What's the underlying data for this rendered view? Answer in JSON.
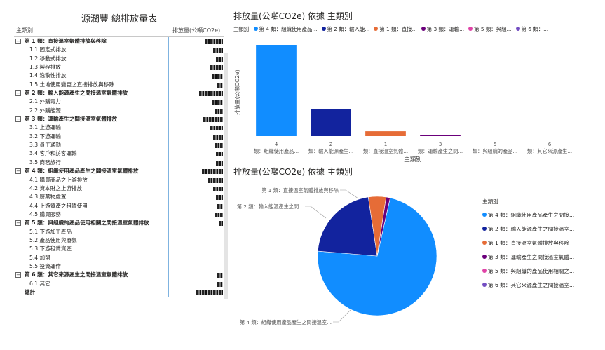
{
  "table": {
    "title": "源潤豐 總排放量表",
    "col_category": "主類別",
    "col_value": "排放量(公噸CO2e)",
    "rows": [
      {
        "type": "group",
        "label": "第 1 類：直接溫室氣體排放與移除",
        "redact_w": 26
      },
      {
        "type": "sub",
        "label": "1.1 固定式排放",
        "redact_w": 14
      },
      {
        "type": "sub",
        "label": "1.2 移動式排放",
        "redact_w": 10
      },
      {
        "type": "sub",
        "label": "1.3 製程排放",
        "redact_w": 18
      },
      {
        "type": "sub",
        "label": "1.4 逸散性排放",
        "redact_w": 16
      },
      {
        "type": "sub",
        "label": "1.5 土地使用變更之直接排放與移除",
        "redact_w": 8
      },
      {
        "type": "group",
        "label": "第 2 類：輸入能源產生之間接溫室氣體排放",
        "redact_w": 34
      },
      {
        "type": "sub",
        "label": "2.1 外購電力",
        "redact_w": 16
      },
      {
        "type": "sub",
        "label": "2.2 外購能源",
        "redact_w": 12
      },
      {
        "type": "group",
        "label": "第 3 類：運輸產生之間接溫室氣體排放",
        "redact_w": 28
      },
      {
        "type": "sub",
        "label": "3.1 上游運輸",
        "redact_w": 18
      },
      {
        "type": "sub",
        "label": "3.2 下游運輸",
        "redact_w": 14
      },
      {
        "type": "sub",
        "label": "3.3 員工通勤",
        "redact_w": 12
      },
      {
        "type": "sub",
        "label": "3.4 客戶和訪客運輸",
        "redact_w": 10
      },
      {
        "type": "sub",
        "label": "3.5 商務旅行",
        "redact_w": 10
      },
      {
        "type": "group",
        "label": "第 4 類：組織使用產品產生之間接溫室氣體排放",
        "redact_w": 30
      },
      {
        "type": "sub",
        "label": "4.1 購買商品之上游排放",
        "redact_w": 22
      },
      {
        "type": "sub",
        "label": "4.2 資本財之上游排放",
        "redact_w": 14
      },
      {
        "type": "sub",
        "label": "4.3 廢棄物處置",
        "redact_w": 10
      },
      {
        "type": "sub",
        "label": "4.4 上游資產之租賃使用",
        "redact_w": 8
      },
      {
        "type": "sub",
        "label": "4.5 購買服務",
        "redact_w": 12
      },
      {
        "type": "group",
        "label": "第 5 類：與組織的產品使用相關之間接溫室氣體排放",
        "redact_w": 6
      },
      {
        "type": "sub",
        "label": "5.1 下游加工產品",
        "redact_w": 0
      },
      {
        "type": "sub",
        "label": "5.2 產品使用與廢氣",
        "redact_w": 0
      },
      {
        "type": "sub",
        "label": "5.3 下游租賃資產",
        "redact_w": 0
      },
      {
        "type": "sub",
        "label": "5.4 加盟",
        "redact_w": 0
      },
      {
        "type": "sub",
        "label": "5.5 投資運作",
        "redact_w": 0
      },
      {
        "type": "group",
        "label": "第 6 類：其它來源產生之間接溫室氣體排放",
        "redact_w": 8
      },
      {
        "type": "sub",
        "label": "6.1 其它",
        "redact_w": 8
      },
      {
        "type": "total",
        "label": "總計",
        "redact_w": 38
      }
    ]
  },
  "bar_chart": {
    "title": "排放量(公噸CO2e) 依據 主類別",
    "legend_title": "主類別",
    "legend_items": [
      {
        "label": "第 4 類：組織使用產品...",
        "color": "#118DFF"
      },
      {
        "label": "第 2 類：輸入能...",
        "color": "#12239E"
      },
      {
        "label": "第 1 類：直接...",
        "color": "#E66C37"
      },
      {
        "label": "第 3 類：運輸...",
        "color": "#6B007B"
      },
      {
        "label": "第 5 類：與組...",
        "color": "#E044A7"
      },
      {
        "label": "第 6 類：...",
        "color": "#744EC2"
      }
    ],
    "ylabel": "排放量(公噸CO2e)",
    "xlabel": "主類別"
  },
  "pie_chart": {
    "title": "排放量(公噸CO2e) 依據 主類別",
    "legend_title": "主類別",
    "legend_items": [
      {
        "label": "第 4 類：組織使用產品產生之間接...",
        "color": "#118DFF"
      },
      {
        "label": "第 2 類：輸入能源產生之間接溫室...",
        "color": "#12239E"
      },
      {
        "label": "第 1 類：直接溫室氣體排放與移除",
        "color": "#E66C37"
      },
      {
        "label": "第 3 類：運輸產生之間接溫室氣體...",
        "color": "#6B007B"
      },
      {
        "label": "第 5 類：與組織的產品使用相關之...",
        "color": "#E044A7"
      },
      {
        "label": "第 6 類：其它來源產生之間接溫室...",
        "color": "#744EC2"
      }
    ],
    "callouts": [
      "第 1 類：直接溫室氣體排放與移除",
      "第 2 類：輸入能源產生之間...",
      "第 4 類：組織使用產品產生之間接溫室..."
    ]
  },
  "chart_data": [
    {
      "type": "bar",
      "title": "排放量(公噸CO2e) 依據 主類別",
      "categories": [
        "4",
        "2",
        "1",
        "3",
        "5",
        "6"
      ],
      "category_labels": [
        "類：組織使用產品...",
        "類：輸入能源產生...",
        "類：直接溫室氣體...",
        "類：運輸產生之間...",
        "類：與組織的產品...",
        "類：其它來源產生..."
      ],
      "values": [
        100,
        29.3,
        5.3,
        1.5,
        0,
        0
      ],
      "colors": [
        "#118DFF",
        "#12239E",
        "#E66C37",
        "#6B007B",
        "#E044A7",
        "#744EC2"
      ],
      "xlabel": "主類別",
      "ylabel": "排放量(公噸CO2e)"
    },
    {
      "type": "pie",
      "title": "排放量(公噸CO2e) 依據 主類別",
      "labels": [
        "第 4 類",
        "第 2 類",
        "第 1 類",
        "第 3 類",
        "第 5 類",
        "第 6 類"
      ],
      "values": [
        72.8,
        21.3,
        4.8,
        1.1,
        0,
        0
      ],
      "colors": [
        "#118DFF",
        "#12239E",
        "#E66C37",
        "#6B007B",
        "#E044A7",
        "#744EC2"
      ]
    }
  ]
}
